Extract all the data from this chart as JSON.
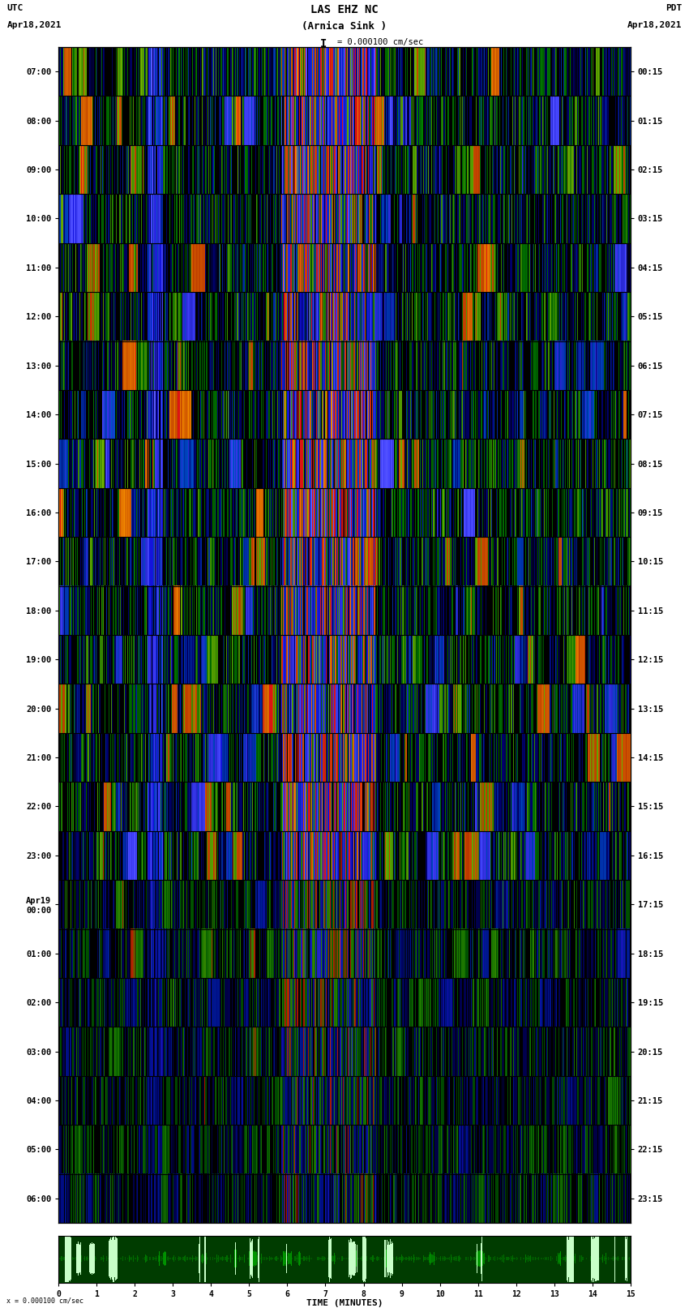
{
  "title_line1": "LAS EHZ NC",
  "title_line2": "(Arnica Sink )",
  "scale_text": "I = 0.000100 cm/sec",
  "left_label_line1": "UTC",
  "left_label_line2": "Apr18,2021",
  "right_label_line1": "PDT",
  "right_label_line2": "Apr18,2021",
  "left_ticks": [
    "07:00",
    "08:00",
    "09:00",
    "10:00",
    "11:00",
    "12:00",
    "13:00",
    "14:00",
    "15:00",
    "16:00",
    "17:00",
    "18:00",
    "19:00",
    "20:00",
    "21:00",
    "22:00",
    "23:00",
    "Apr19\n00:00",
    "01:00",
    "02:00",
    "03:00",
    "04:00",
    "05:00",
    "06:00"
  ],
  "right_ticks": [
    "00:15",
    "01:15",
    "02:15",
    "03:15",
    "04:15",
    "05:15",
    "06:15",
    "07:15",
    "08:15",
    "09:15",
    "10:15",
    "11:15",
    "12:15",
    "13:15",
    "14:15",
    "15:15",
    "16:15",
    "17:15",
    "18:15",
    "19:15",
    "20:15",
    "21:15",
    "22:15",
    "23:15"
  ],
  "bottom_ticks": [
    "0",
    "1",
    "2",
    "3",
    "4",
    "5",
    "6",
    "7",
    "8",
    "9",
    "10",
    "11",
    "12",
    "13",
    "14",
    "15"
  ],
  "bottom_label": "TIME (MINUTES)",
  "bottom_note": "x = 0.000100 cm/sec",
  "fig_width": 8.5,
  "fig_height": 16.13,
  "num_rows": 24,
  "num_cols": 900,
  "random_seed": 42
}
